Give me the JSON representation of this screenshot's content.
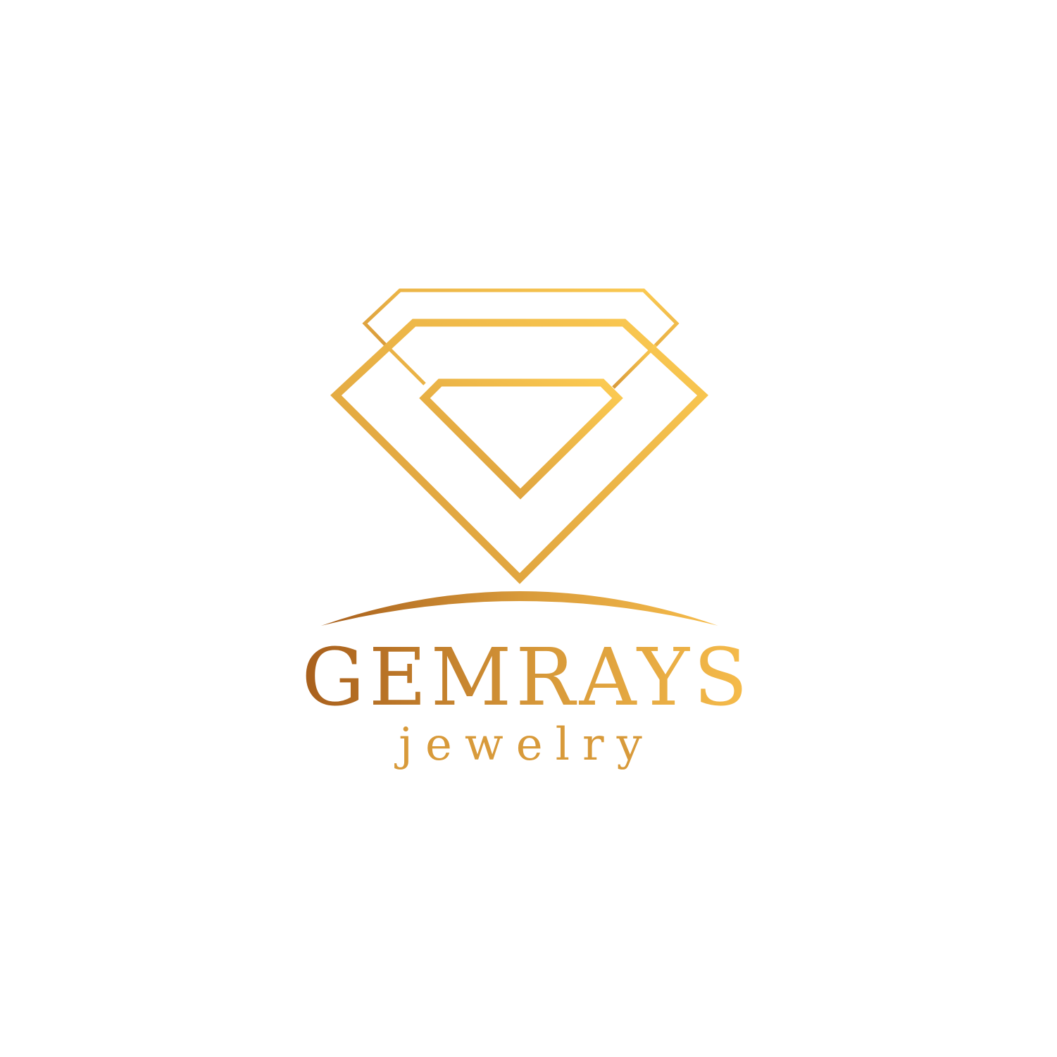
{
  "logo": {
    "name": "GEMRAYS",
    "tagline": "jewelry",
    "colors": {
      "gold_dark": "#a85f1c",
      "gold_mid": "#d89a3a",
      "gold_light": "#f6bc4b",
      "gold_bright": "#fccb52",
      "background": "#ffffff"
    }
  }
}
